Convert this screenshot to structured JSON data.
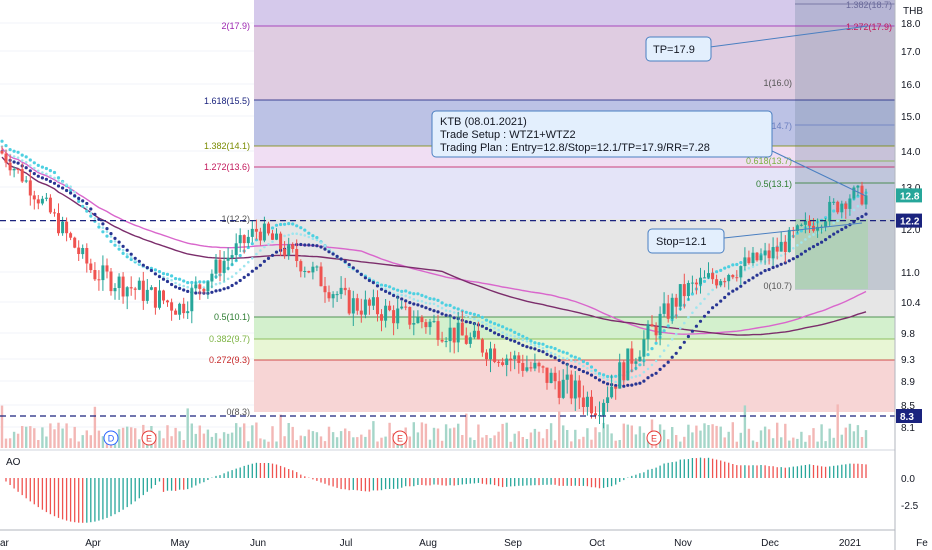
{
  "currency": "THB",
  "ao_label": "AO",
  "price_axis_ticks": [
    "18.0",
    "17.0",
    "16.0",
    "15.0",
    "14.0",
    "13.0",
    "12.0",
    "11.0",
    "10.4",
    "9.8",
    "9.3",
    "8.9",
    "8.5",
    "8.1"
  ],
  "ao_axis_ticks": [
    "0.0",
    "-2.5"
  ],
  "x_labels": [
    "ar",
    "Apr",
    "May",
    "Jun",
    "Jul",
    "Aug",
    "Sep",
    "Oct",
    "Nov",
    "Dec",
    "2021",
    "Fe"
  ],
  "price_tags": [
    {
      "text": "12.8",
      "color": "#26a69a"
    },
    {
      "text": "12.2",
      "color": "#1a237e"
    },
    {
      "text": "8.3",
      "color": "#1a237e"
    }
  ],
  "fib_left": [
    {
      "label": "2(17.9)",
      "color": "#9c27b0"
    },
    {
      "label": "1.618(15.5)",
      "color": "#1a237e"
    },
    {
      "label": "1.382(14.1)",
      "color": "#7a8b00"
    },
    {
      "label": "1.272(13.6)",
      "color": "#c2185b"
    },
    {
      "label": "1(12.2)",
      "color": "#555555"
    },
    {
      "label": "0.5(10.1)",
      "color": "#2e7d32"
    },
    {
      "label": "0.382(9.7)",
      "color": "#7cb342"
    },
    {
      "label": "0.272(9.3)",
      "color": "#c62828"
    },
    {
      "label": "0(8.3)",
      "color": "#555555"
    }
  ],
  "fib_right": [
    {
      "label": "1.382(18.7)",
      "color": "#6a6a9a"
    },
    {
      "label": "1.272(17.9)",
      "color": "#c2185b"
    },
    {
      "label": "1(16.0)",
      "color": "#555555"
    },
    {
      "label": "0.786(14.7)",
      "color": "#6a7fc0"
    },
    {
      "label": "0.618(13.7)",
      "color": "#7cb342"
    },
    {
      "label": "0.5(13.1)",
      "color": "#2e7d32"
    },
    {
      "label": "0(10.7)",
      "color": "#555555"
    }
  ],
  "notes": {
    "tp": "TP=17.9",
    "stop": "Stop=12.1",
    "plan_line1": "KTB (08.01.2021)",
    "plan_line2": "Trade Setup : WTZ1+WTZ2",
    "plan_line3": "Trading Plan : Entry=12.8/Stop=12.1/TP=17.9/RR=7.28"
  },
  "event_markers": [
    {
      "letter": "D",
      "color": "#2962ff"
    },
    {
      "letter": "E",
      "color": "#e53935"
    },
    {
      "letter": "E",
      "color": "#e53935"
    },
    {
      "letter": "E",
      "color": "#e53935"
    }
  ],
  "colors": {
    "up": "#26a69a",
    "down": "#ef5350",
    "ema_fast": "#4dd0e1",
    "ema_slow": "#283593",
    "ma_pink": "#d966cc",
    "ma_purple": "#7b2d6b",
    "dashed": "#1a237e"
  },
  "chart_data": {
    "type": "candlestick",
    "period": "Mar 2020 – Jan 2021",
    "price_series_close": [
      {
        "month": "Mar",
        "close": 14.0
      },
      {
        "month": "Apr",
        "close": 11.0
      },
      {
        "month": "May",
        "close": 10.3
      },
      {
        "month": "Jun",
        "close": 12.0
      },
      {
        "month": "Jul",
        "close": 10.4
      },
      {
        "month": "Aug",
        "close": 10.0
      },
      {
        "month": "Sep",
        "close": 9.3
      },
      {
        "month": "Oct",
        "close": 8.5
      },
      {
        "month": "Nov",
        "close": 10.6
      },
      {
        "month": "Dec",
        "close": 11.4
      },
      {
        "month": "2021",
        "close": 12.8
      }
    ],
    "entry": 12.8,
    "stop": 12.1,
    "take_profit": 17.9,
    "risk_reward": 7.28,
    "horizontal_levels": [
      12.2,
      8.3
    ],
    "y_range": [
      8.0,
      18.8
    ],
    "indicator": {
      "name": "AO",
      "y_range": [
        -3.5,
        1.5
      ]
    }
  }
}
